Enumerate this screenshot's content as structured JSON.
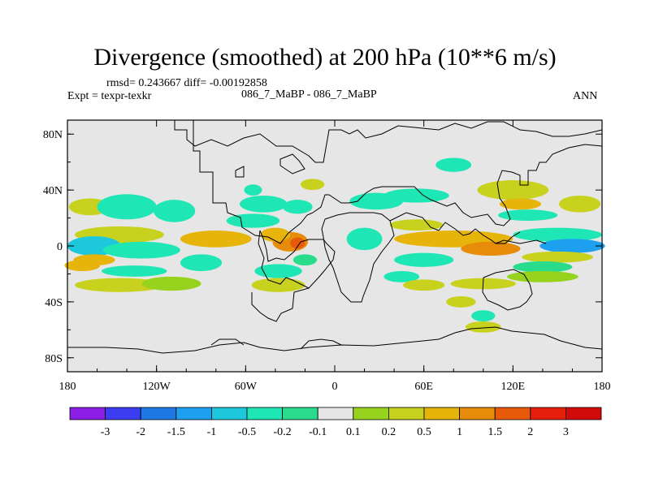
{
  "title": "Divergence (smoothed) at 200 hPa (10**6 m/s)",
  "stats": "rmsd= 0.243667 diff= -0.00192858",
  "expt": "Expt = texpr-texkr",
  "case": "086_7_MaBP - 086_7_MaBP",
  "season": "ANN",
  "chart_data": {
    "type": "heatmap",
    "title": "Divergence (smoothed) at 200 hPa (10**6 m/s)",
    "variable": "200 hPa divergence difference",
    "units": "10**6 m/s",
    "xlabel": "",
    "ylabel": "",
    "xlim": [
      -180,
      180
    ],
    "ylim": [
      -90,
      90
    ],
    "x_ticks": [
      {
        "value": -180,
        "label": "180"
      },
      {
        "value": -120,
        "label": "120W"
      },
      {
        "value": -60,
        "label": "60W"
      },
      {
        "value": 0,
        "label": "0"
      },
      {
        "value": 60,
        "label": "60E"
      },
      {
        "value": 120,
        "label": "120E"
      },
      {
        "value": 180,
        "label": "180"
      }
    ],
    "y_ticks": [
      {
        "value": 80,
        "label": "80N"
      },
      {
        "value": 40,
        "label": "40N"
      },
      {
        "value": 0,
        "label": "0"
      },
      {
        "value": -40,
        "label": "40S"
      },
      {
        "value": -80,
        "label": "80S"
      }
    ],
    "colorbar": {
      "levels": [
        "-3",
        "-2",
        "-1.5",
        "-1",
        "-0.5",
        "-0.2",
        "-0.1",
        "0.1",
        "0.2",
        "0.5",
        "1",
        "1.5",
        "2",
        "3"
      ],
      "colors": [
        "#8c1ee6",
        "#3c3cf0",
        "#1e78e6",
        "#1ea0f0",
        "#1ec8dc",
        "#1ee6b4",
        "#28dc8c",
        "#e6e6e6",
        "#96d21e",
        "#c8d21e",
        "#e6b40a",
        "#e68c0a",
        "#e65a0a",
        "#e61e0a",
        "#d20a0a"
      ]
    },
    "field_blobs": [
      {
        "lon": -165,
        "lat": 28,
        "rlon": 14,
        "rlat": 6,
        "v": 0.25
      },
      {
        "lon": -140,
        "lat": 28,
        "rlon": 20,
        "rlat": 9,
        "v": -0.3
      },
      {
        "lon": -108,
        "lat": 25,
        "rlon": 14,
        "rlat": 8,
        "v": -0.25
      },
      {
        "lon": -145,
        "lat": 8,
        "rlon": 30,
        "rlat": 6,
        "v": 0.35
      },
      {
        "lon": -162,
        "lat": 0,
        "rlon": 18,
        "rlat": 7,
        "v": -0.8
      },
      {
        "lon": -130,
        "lat": -3,
        "rlon": 26,
        "rlat": 6,
        "v": -0.5
      },
      {
        "lon": -162,
        "lat": -10,
        "rlon": 14,
        "rlat": 4,
        "v": 0.6
      },
      {
        "lon": -170,
        "lat": -14,
        "rlon": 12,
        "rlat": 4,
        "v": 0.9
      },
      {
        "lon": -135,
        "lat": -18,
        "rlon": 22,
        "rlat": 4,
        "v": -0.25
      },
      {
        "lon": -145,
        "lat": -28,
        "rlon": 30,
        "rlat": 5,
        "v": 0.2
      },
      {
        "lon": -110,
        "lat": -27,
        "rlon": 20,
        "rlat": 5,
        "v": 0.15
      },
      {
        "lon": -90,
        "lat": -12,
        "rlon": 14,
        "rlat": 6,
        "v": -0.3
      },
      {
        "lon": -55,
        "lat": 40,
        "rlon": 6,
        "rlat": 4,
        "v": -0.25
      },
      {
        "lon": -48,
        "lat": 30,
        "rlon": 16,
        "rlat": 6,
        "v": -0.3
      },
      {
        "lon": -55,
        "lat": 18,
        "rlon": 18,
        "rlat": 5,
        "v": -0.25
      },
      {
        "lon": -80,
        "lat": 5,
        "rlon": 24,
        "rlat": 6,
        "v": 0.6
      },
      {
        "lon": -30,
        "lat": 3,
        "rlon": 12,
        "rlat": 7,
        "v": 1.2
      },
      {
        "lon": -25,
        "lat": 2,
        "rlon": 5,
        "rlat": 4,
        "v": 1.6
      },
      {
        "lon": -40,
        "lat": 8,
        "rlon": 10,
        "rlat": 5,
        "v": 0.9
      },
      {
        "lon": -38,
        "lat": -18,
        "rlon": 16,
        "rlat": 5,
        "v": -0.4
      },
      {
        "lon": -38,
        "lat": -28,
        "rlon": 18,
        "rlat": 5,
        "v": 0.2
      },
      {
        "lon": -20,
        "lat": -10,
        "rlon": 8,
        "rlat": 4,
        "v": -0.2
      },
      {
        "lon": -25,
        "lat": 28,
        "rlon": 10,
        "rlat": 5,
        "v": -0.25
      },
      {
        "lon": -15,
        "lat": 44,
        "rlon": 8,
        "rlat": 4,
        "v": 0.2
      },
      {
        "lon": 28,
        "lat": 32,
        "rlon": 18,
        "rlat": 6,
        "v": -0.3
      },
      {
        "lon": 55,
        "lat": 36,
        "rlon": 22,
        "rlat": 5,
        "v": -0.3
      },
      {
        "lon": 80,
        "lat": 58,
        "rlon": 12,
        "rlat": 5,
        "v": -0.25
      },
      {
        "lon": 55,
        "lat": 15,
        "rlon": 18,
        "rlat": 4,
        "v": 0.25
      },
      {
        "lon": 20,
        "lat": 5,
        "rlon": 12,
        "rlat": 8,
        "v": -0.35
      },
      {
        "lon": 80,
        "lat": 5,
        "rlon": 40,
        "rlat": 6,
        "v": 0.55
      },
      {
        "lon": 105,
        "lat": -2,
        "rlon": 20,
        "rlat": 5,
        "v": 1.1
      },
      {
        "lon": 60,
        "lat": -10,
        "rlon": 20,
        "rlat": 5,
        "v": -0.35
      },
      {
        "lon": 45,
        "lat": -22,
        "rlon": 12,
        "rlat": 4,
        "v": -0.3
      },
      {
        "lon": 60,
        "lat": -28,
        "rlon": 14,
        "rlat": 4,
        "v": 0.2
      },
      {
        "lon": 100,
        "lat": -27,
        "rlon": 22,
        "rlat": 4,
        "v": 0.2
      },
      {
        "lon": 85,
        "lat": -40,
        "rlon": 10,
        "rlat": 4,
        "v": 0.25
      },
      {
        "lon": 100,
        "lat": -50,
        "rlon": 8,
        "rlat": 4,
        "v": -0.25
      },
      {
        "lon": 100,
        "lat": -58,
        "rlon": 12,
        "rlat": 4,
        "v": 0.2
      },
      {
        "lon": 120,
        "lat": 40,
        "rlon": 24,
        "rlat": 7,
        "v": 0.2
      },
      {
        "lon": 125,
        "lat": 30,
        "rlon": 14,
        "rlat": 4,
        "v": 0.6
      },
      {
        "lon": 165,
        "lat": 30,
        "rlon": 14,
        "rlat": 6,
        "v": 0.25
      },
      {
        "lon": 150,
        "lat": 8,
        "rlon": 30,
        "rlat": 5,
        "v": -0.3
      },
      {
        "lon": 160,
        "lat": 0,
        "rlon": 22,
        "rlat": 5,
        "v": -1.1
      },
      {
        "lon": 130,
        "lat": 22,
        "rlon": 20,
        "rlat": 4,
        "v": -0.3
      },
      {
        "lon": 150,
        "lat": -8,
        "rlon": 24,
        "rlat": 4,
        "v": 0.35
      },
      {
        "lon": 140,
        "lat": -15,
        "rlon": 20,
        "rlat": 4,
        "v": -0.2
      },
      {
        "lon": 140,
        "lat": -22,
        "rlon": 24,
        "rlat": 4,
        "v": 0.15
      }
    ]
  }
}
